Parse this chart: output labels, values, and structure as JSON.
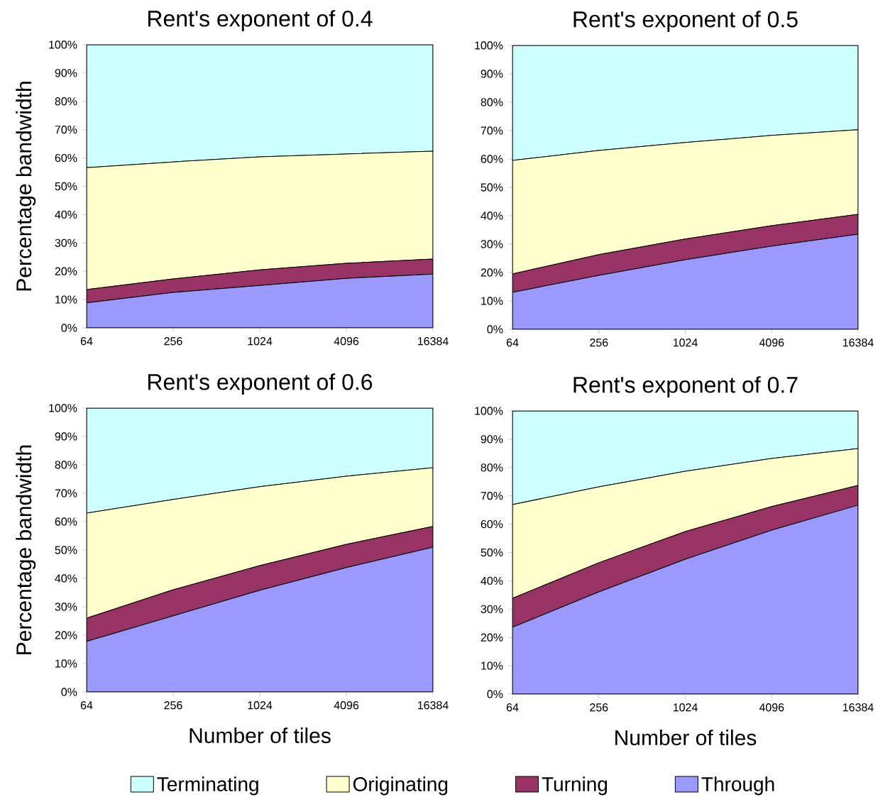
{
  "chart_data": [
    {
      "type": "area",
      "title": "Rent's exponent of 0.4",
      "ylabel": "Percentage bandwidth",
      "stacked": true,
      "log": "x",
      "legend": false,
      "x": [
        64,
        256,
        1024,
        4096,
        16384
      ],
      "xlim": [
        64,
        16384
      ],
      "xticks": [
        64,
        256,
        1024,
        4096,
        16384
      ],
      "ylim": [
        0,
        100
      ],
      "yticks": [
        {
          "value": 0,
          "label": "0%"
        },
        {
          "value": 10,
          "label": "10%"
        },
        {
          "value": 20,
          "label": "20%"
        },
        {
          "value": 30,
          "label": "30%"
        },
        {
          "value": 40,
          "label": "40%"
        },
        {
          "value": 50,
          "label": "50%"
        },
        {
          "value": 60,
          "label": "60%"
        },
        {
          "value": 70,
          "label": "70%"
        },
        {
          "value": 80,
          "label": "80%"
        },
        {
          "value": 90,
          "label": "90%"
        },
        {
          "value": 100,
          "label": "100%"
        }
      ],
      "series": [
        {
          "color": "#9999ff",
          "values": [
            8.8,
            12.5,
            15,
            17.5,
            19
          ]
        },
        {
          "color": "#993366",
          "values": [
            4.7,
            4.8,
            5.5,
            5.3,
            5.3
          ]
        },
        {
          "color": "#ffffcc",
          "values": [
            43.1,
            41.3,
            39.9,
            38.6,
            38.1
          ]
        },
        {
          "color": "#ccffff",
          "values": [
            43.4,
            41.4,
            39.6,
            38.6,
            37.6
          ]
        }
      ]
    },
    {
      "type": "area",
      "title": "Rent's exponent of 0.5",
      "stacked": true,
      "log": "x",
      "legend": false,
      "x": [
        64,
        256,
        1024,
        4096,
        16384
      ],
      "xlim": [
        64,
        16384
      ],
      "xticks": [
        64,
        256,
        1024,
        4096,
        16384
      ],
      "ylim": [
        0,
        100
      ],
      "yticks": [
        {
          "value": 0,
          "label": "0%"
        },
        {
          "value": 10,
          "label": "10%"
        },
        {
          "value": 20,
          "label": "20%"
        },
        {
          "value": 30,
          "label": "30%"
        },
        {
          "value": 40,
          "label": "40%"
        },
        {
          "value": 50,
          "label": "50%"
        },
        {
          "value": 60,
          "label": "60%"
        },
        {
          "value": 70,
          "label": "70%"
        },
        {
          "value": 80,
          "label": "80%"
        },
        {
          "value": 90,
          "label": "90%"
        },
        {
          "value": 100,
          "label": "100%"
        }
      ],
      "series": [
        {
          "color": "#9999ff",
          "values": [
            13,
            19,
            24.5,
            29.3,
            33.5
          ]
        },
        {
          "color": "#993366",
          "values": [
            6.5,
            7.3,
            7.3,
            7.2,
            7
          ]
        },
        {
          "color": "#ffffcc",
          "values": [
            40,
            36.7,
            34,
            31.8,
            29.8
          ]
        },
        {
          "color": "#ccffff",
          "values": [
            40.5,
            37,
            34.2,
            31.7,
            29.7
          ]
        }
      ]
    },
    {
      "type": "area",
      "title": "Rent's exponent of 0.6",
      "xlabel": "Number of tiles",
      "ylabel": "Percentage bandwidth",
      "stacked": true,
      "log": "x",
      "legend": false,
      "x": [
        64,
        256,
        1024,
        4096,
        16384
      ],
      "xlim": [
        64,
        16384
      ],
      "xticks": [
        64,
        256,
        1024,
        4096,
        16384
      ],
      "ylim": [
        0,
        100
      ],
      "yticks": [
        {
          "value": 0,
          "label": "0%"
        },
        {
          "value": 10,
          "label": "10%"
        },
        {
          "value": 20,
          "label": "20%"
        },
        {
          "value": 30,
          "label": "30%"
        },
        {
          "value": 40,
          "label": "40%"
        },
        {
          "value": 50,
          "label": "50%"
        },
        {
          "value": 60,
          "label": "60%"
        },
        {
          "value": 70,
          "label": "70%"
        },
        {
          "value": 80,
          "label": "80%"
        },
        {
          "value": 90,
          "label": "90%"
        },
        {
          "value": 100,
          "label": "100%"
        }
      ],
      "series": [
        {
          "color": "#9999ff",
          "values": [
            17.8,
            26.8,
            35.8,
            43.8,
            51
          ]
        },
        {
          "color": "#993366",
          "values": [
            8.2,
            9.2,
            8.7,
            8.2,
            7.3
          ]
        },
        {
          "color": "#ffffcc",
          "values": [
            37,
            31.8,
            27.8,
            24,
            20.7
          ]
        },
        {
          "color": "#ccffff",
          "values": [
            37,
            32.2,
            27.7,
            24,
            21
          ]
        }
      ]
    },
    {
      "type": "area",
      "title": "Rent's exponent of 0.7",
      "xlabel": "Number of tiles",
      "stacked": true,
      "log": "x",
      "legend": "bottom",
      "x": [
        64,
        256,
        1024,
        4096,
        16384
      ],
      "xlim": [
        64,
        16384
      ],
      "xticks": [
        64,
        256,
        1024,
        4096,
        16384
      ],
      "ylim": [
        0,
        100
      ],
      "yticks": [
        {
          "value": 0,
          "label": "0%"
        },
        {
          "value": 10,
          "label": "10%"
        },
        {
          "value": 20,
          "label": "20%"
        },
        {
          "value": 30,
          "label": "30%"
        },
        {
          "value": 40,
          "label": "40%"
        },
        {
          "value": 50,
          "label": "50%"
        },
        {
          "value": 60,
          "label": "60%"
        },
        {
          "value": 70,
          "label": "70%"
        },
        {
          "value": 80,
          "label": "80%"
        },
        {
          "value": 90,
          "label": "90%"
        },
        {
          "value": 100,
          "label": "100%"
        }
      ],
      "series": [
        {
          "name": "Through",
          "color": "#9999ff",
          "values": [
            23.6,
            36.1,
            47.6,
            57.9,
            66.7
          ]
        },
        {
          "name": "Turning",
          "color": "#993366",
          "values": [
            10.2,
            10.3,
            9.8,
            8.3,
            7
          ]
        },
        {
          "name": "Originating",
          "color": "#ffffcc",
          "values": [
            33.1,
            26.8,
            21.3,
            17,
            13
          ]
        },
        {
          "name": "Terminating",
          "color": "#ccffff",
          "values": [
            33.1,
            26.8,
            21.3,
            16.8,
            13.3
          ]
        }
      ]
    }
  ]
}
